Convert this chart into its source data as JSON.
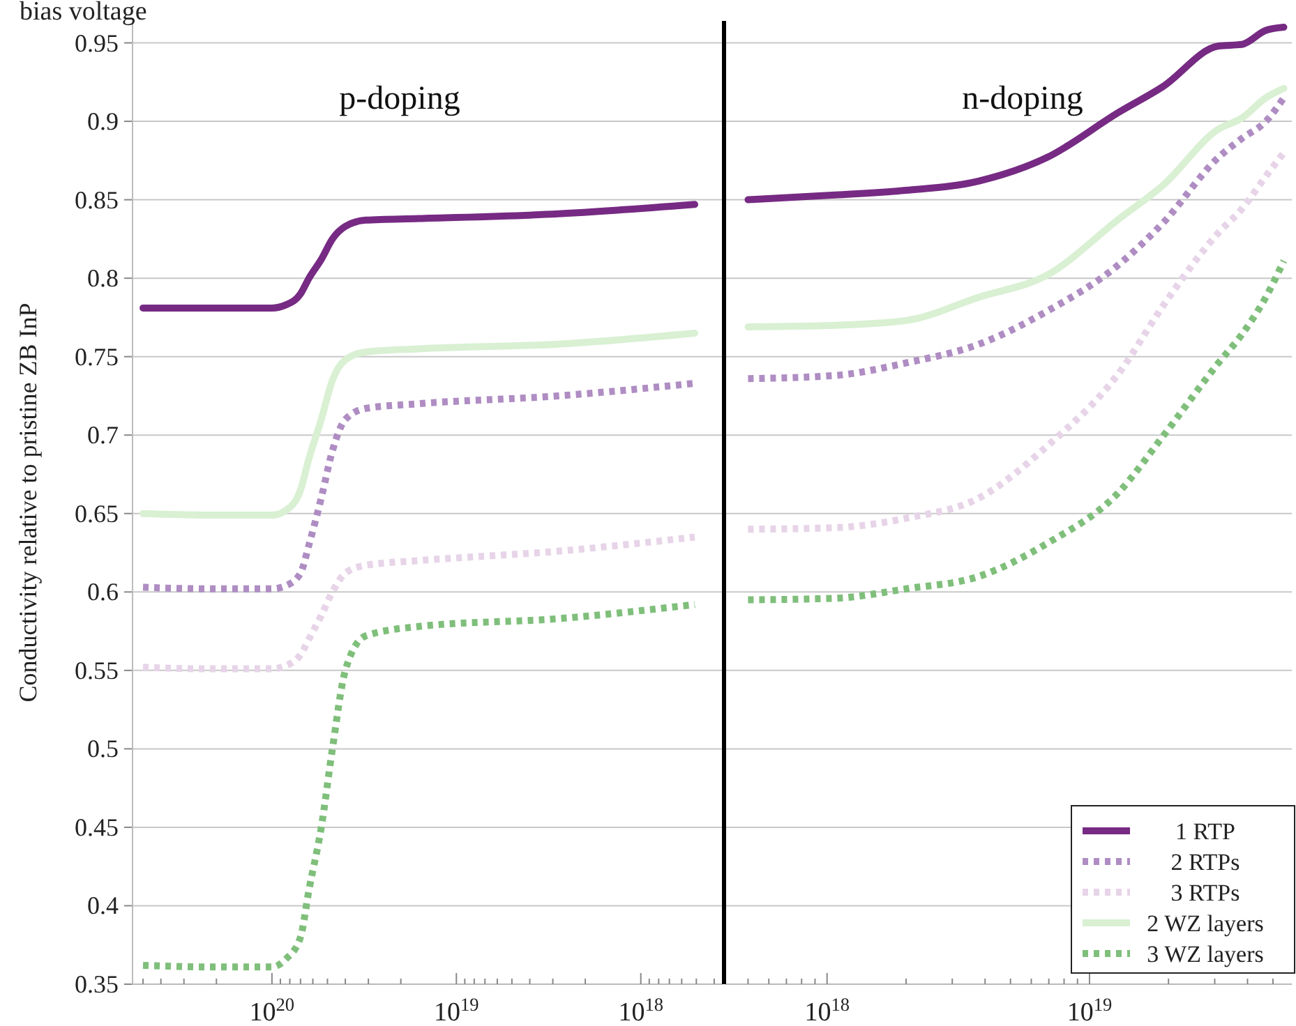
{
  "chart_data": [
    {
      "type": "line",
      "title": "bias voltage",
      "ylabel": "Conductivity relative to pristine ZB InP",
      "annotations": [
        "p-doping"
      ],
      "log": "x",
      "grid": "y",
      "legend": false,
      "x": [
        5e+20,
        2.2e+20,
        1e+20,
        8.4e+19,
        7e+19,
        6.3e+19,
        5.4e+19,
        4.7e+19,
        4e+19,
        3.1e+19,
        1.6e+19,
        2.8e+18,
        5.1e+17
      ],
      "xlim": [
        5.7e+20,
        3.6e+17
      ],
      "xticks": [
        {
          "value": 1e+20,
          "label": "10$^{20}$"
        },
        {
          "value": 1e+19,
          "label": "10$^{19}$"
        },
        {
          "value": 1e+18,
          "label": "10$^{18}$"
        }
      ],
      "ylim": [
        0.35,
        0.964
      ],
      "yticks": [
        0.35,
        0.4,
        0.45,
        0.5,
        0.55,
        0.6,
        0.65,
        0.7,
        0.75,
        0.8,
        0.85,
        0.9,
        0.95
      ],
      "series": [
        {
          "color": "#762a83",
          "line_style": "solid",
          "values": [
            0.781,
            0.781,
            0.781,
            0.783,
            0.79,
            0.8,
            0.812,
            0.825,
            0.833,
            0.837,
            0.838,
            0.841,
            0.847
          ]
        },
        {
          "color": "#af8dc3",
          "line_style": "dotted",
          "values": [
            0.603,
            0.602,
            0.602,
            0.604,
            0.612,
            0.63,
            0.66,
            0.69,
            0.71,
            0.717,
            0.72,
            0.725,
            0.733
          ]
        },
        {
          "color": "#e7d4e8",
          "line_style": "dotted",
          "values": [
            0.552,
            0.551,
            0.551,
            0.553,
            0.56,
            0.57,
            0.585,
            0.6,
            0.612,
            0.617,
            0.62,
            0.626,
            0.635
          ]
        },
        {
          "color": "#d9f0d3",
          "line_style": "solid",
          "values": [
            0.65,
            0.649,
            0.649,
            0.652,
            0.665,
            0.685,
            0.71,
            0.735,
            0.748,
            0.753,
            0.755,
            0.758,
            0.765
          ]
        },
        {
          "color": "#7fbf7b",
          "line_style": "dotted",
          "values": [
            0.362,
            0.361,
            0.361,
            0.366,
            0.38,
            0.41,
            0.45,
            0.5,
            0.55,
            0.572,
            0.578,
            0.583,
            0.592
          ]
        }
      ]
    },
    {
      "type": "line",
      "annotations": [
        "n-doping"
      ],
      "log": "x",
      "grid": "y",
      "legend": "bottom right",
      "tick_labels": "x",
      "x": [
        5e+17,
        1.07e+18,
        2e+18,
        3.8e+18,
        6.9e+18,
        1.3e+19,
        1.9e+19,
        3.1e+19,
        3.8e+19,
        4.7e+19,
        5.5e+19
      ],
      "xlim": [
        4.1e+17,
        5.9e+19
      ],
      "xticks": [
        {
          "value": 1e+18,
          "label": "10$^{18}$"
        },
        {
          "value": 1e+19,
          "label": "10$^{19}$"
        }
      ],
      "ylim": [
        0.35,
        0.964
      ],
      "yticks": [
        0.35,
        0.4,
        0.45,
        0.5,
        0.55,
        0.6,
        0.65,
        0.7,
        0.75,
        0.8,
        0.85,
        0.9,
        0.95
      ],
      "series": [
        {
          "name": "1 RTP",
          "color": "#762a83",
          "line_style": "solid",
          "values": [
            0.85,
            0.853,
            0.856,
            0.862,
            0.877,
            0.906,
            0.922,
            0.948,
            0.949,
            0.958,
            0.96
          ]
        },
        {
          "name": "2 RTPs",
          "color": "#af8dc3",
          "line_style": "dotted",
          "values": [
            0.736,
            0.738,
            0.746,
            0.758,
            0.779,
            0.809,
            0.835,
            0.877,
            0.889,
            0.9,
            0.915
          ]
        },
        {
          "name": "3 RTPs",
          "color": "#e7d4e8",
          "line_style": "dotted",
          "values": [
            0.64,
            0.641,
            0.647,
            0.66,
            0.693,
            0.74,
            0.782,
            0.829,
            0.844,
            0.865,
            0.88
          ]
        },
        {
          "name": "2 WZ layers",
          "color": "#d9f0d3",
          "line_style": "solid",
          "values": [
            0.769,
            0.77,
            0.773,
            0.788,
            0.802,
            0.838,
            0.859,
            0.895,
            0.902,
            0.915,
            0.921
          ]
        },
        {
          "name": "3 WZ layers",
          "color": "#7fbf7b",
          "line_style": "dotted",
          "values": [
            0.595,
            0.596,
            0.602,
            0.61,
            0.631,
            0.664,
            0.699,
            0.746,
            0.764,
            0.788,
            0.811
          ]
        }
      ]
    }
  ]
}
